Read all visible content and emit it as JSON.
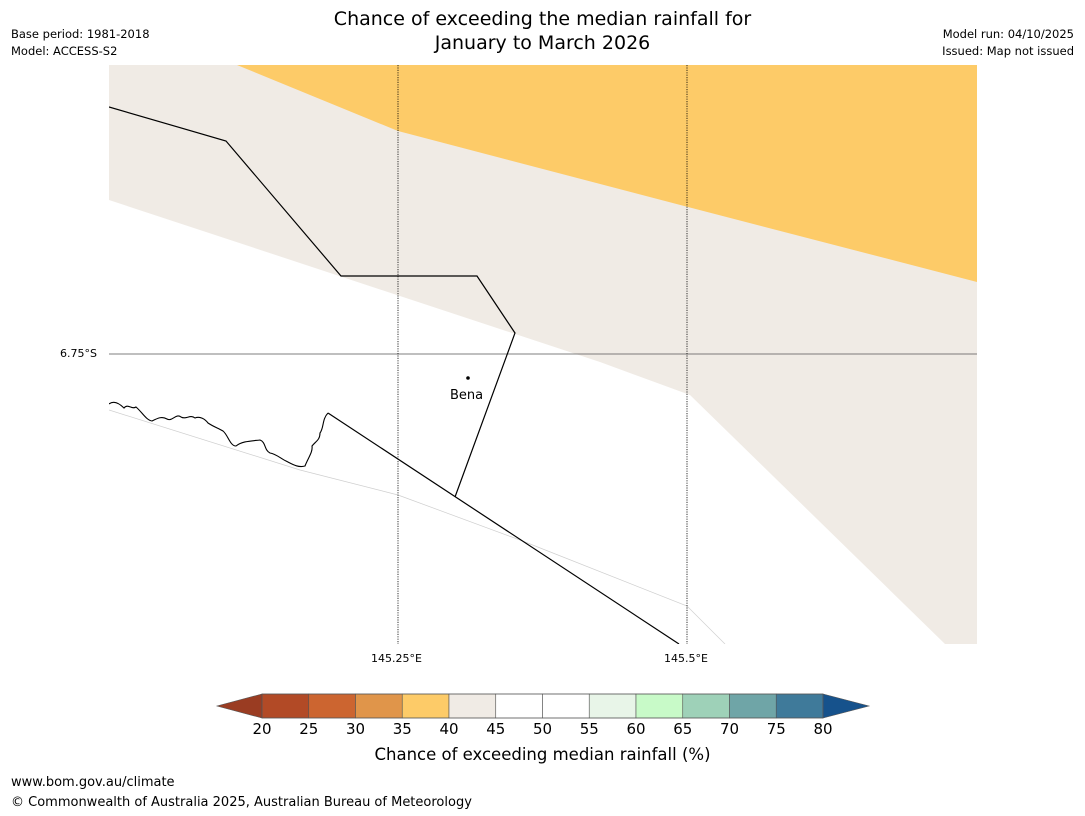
{
  "title": {
    "line1": "Chance of exceeding the median rainfall for",
    "line2": "January to March 2026"
  },
  "meta": {
    "base_period": "Base period: 1981-2018",
    "model": "Model: ACCESS-S2",
    "model_run": "Model run: 04/10/2025",
    "issued": "Issued: Map not issued"
  },
  "map": {
    "lat_label": "6.75°S",
    "lon_labels": [
      "145.25°E",
      "145.5°E"
    ],
    "place": "Bena",
    "colors": {
      "band_35_40": "#fdcb68",
      "band_40_45": "#f0ebe5",
      "band_45_55": "#ffffff",
      "boundary": "#000000",
      "gridline": "#000000"
    }
  },
  "colorbar": {
    "ticks": [
      "20",
      "25",
      "30",
      "35",
      "40",
      "45",
      "50",
      "55",
      "60",
      "65",
      "70",
      "75",
      "80"
    ],
    "colors": [
      "#b24a26",
      "#cc6530",
      "#e0954a",
      "#fdcb68",
      "#f0ebe5",
      "#ffffff",
      "#ffffff",
      "#e8f5e8",
      "#c8fac8",
      "#9ed1b8",
      "#6fa5a7",
      "#3f7a9a"
    ],
    "under_color": "#9a3c22",
    "over_color": "#16528c",
    "title": "Chance of exceeding median rainfall (%)"
  },
  "footer": {
    "url": "www.bom.gov.au/climate",
    "copyright": "© Commonwealth of Australia 2025, Australian Bureau of Meteorology"
  }
}
